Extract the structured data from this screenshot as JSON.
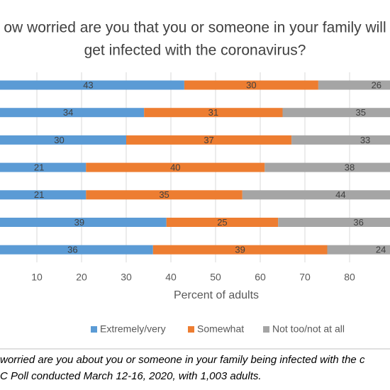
{
  "chart_data": {
    "type": "stacked_barh",
    "title": [
      "ow worried are you that you or someone in your family will",
      "get infected with the coronavirus?"
    ],
    "x_label": "Percent of adults",
    "notes": [
      "worried are you about you or someone in your family being infected with the c",
      "C Poll conducted March 12-16, 2020, with 1,003 adults."
    ],
    "categories": [
      null,
      null,
      null,
      null,
      null,
      null,
      null
    ],
    "series": [
      {
        "name": "Extremely/very",
        "color": "#5b9bd5",
        "values": [
          43,
          34,
          30,
          21,
          21,
          39,
          36
        ]
      },
      {
        "name": "Somewhat",
        "color": "#ed7d31",
        "values": [
          30,
          31,
          37,
          40,
          35,
          25,
          39
        ]
      },
      {
        "name": "Not too/not at all",
        "color": "#a5a5a5",
        "values": [
          26,
          35,
          33,
          38,
          44,
          36,
          24
        ]
      }
    ],
    "xlim": [
      0,
      100
    ],
    "xticks": [
      10,
      20,
      30,
      40,
      50,
      60,
      70,
      80
    ],
    "grid": true,
    "legend": "bottom"
  }
}
